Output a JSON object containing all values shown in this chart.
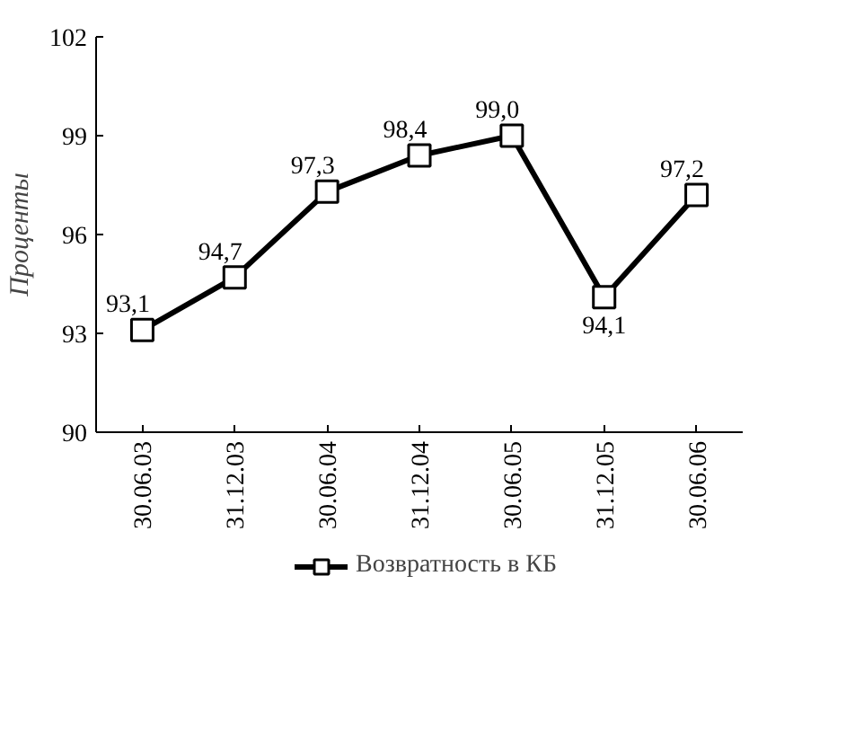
{
  "chart_data": {
    "type": "line",
    "ylabel": "Проценты",
    "categories": [
      "30.06.03",
      "31.12.03",
      "30.06.04",
      "31.12.04",
      "30.06.05",
      "31.12.05",
      "30.06.06"
    ],
    "series": [
      {
        "name": "Возвратность в КБ",
        "color": "#000000",
        "values": [
          93.1,
          94.7,
          97.3,
          98.4,
          99.0,
          94.1,
          97.2
        ],
        "value_labels": [
          "93,1",
          "94,7",
          "97,3",
          "98,4",
          "99,0",
          "94,1",
          "97,2"
        ]
      }
    ],
    "ylim": [
      90,
      102
    ],
    "yticks": [
      90,
      93,
      96,
      99,
      102
    ],
    "grid": false,
    "legend": "bottom",
    "marker": "square",
    "line_style": "solid"
  }
}
